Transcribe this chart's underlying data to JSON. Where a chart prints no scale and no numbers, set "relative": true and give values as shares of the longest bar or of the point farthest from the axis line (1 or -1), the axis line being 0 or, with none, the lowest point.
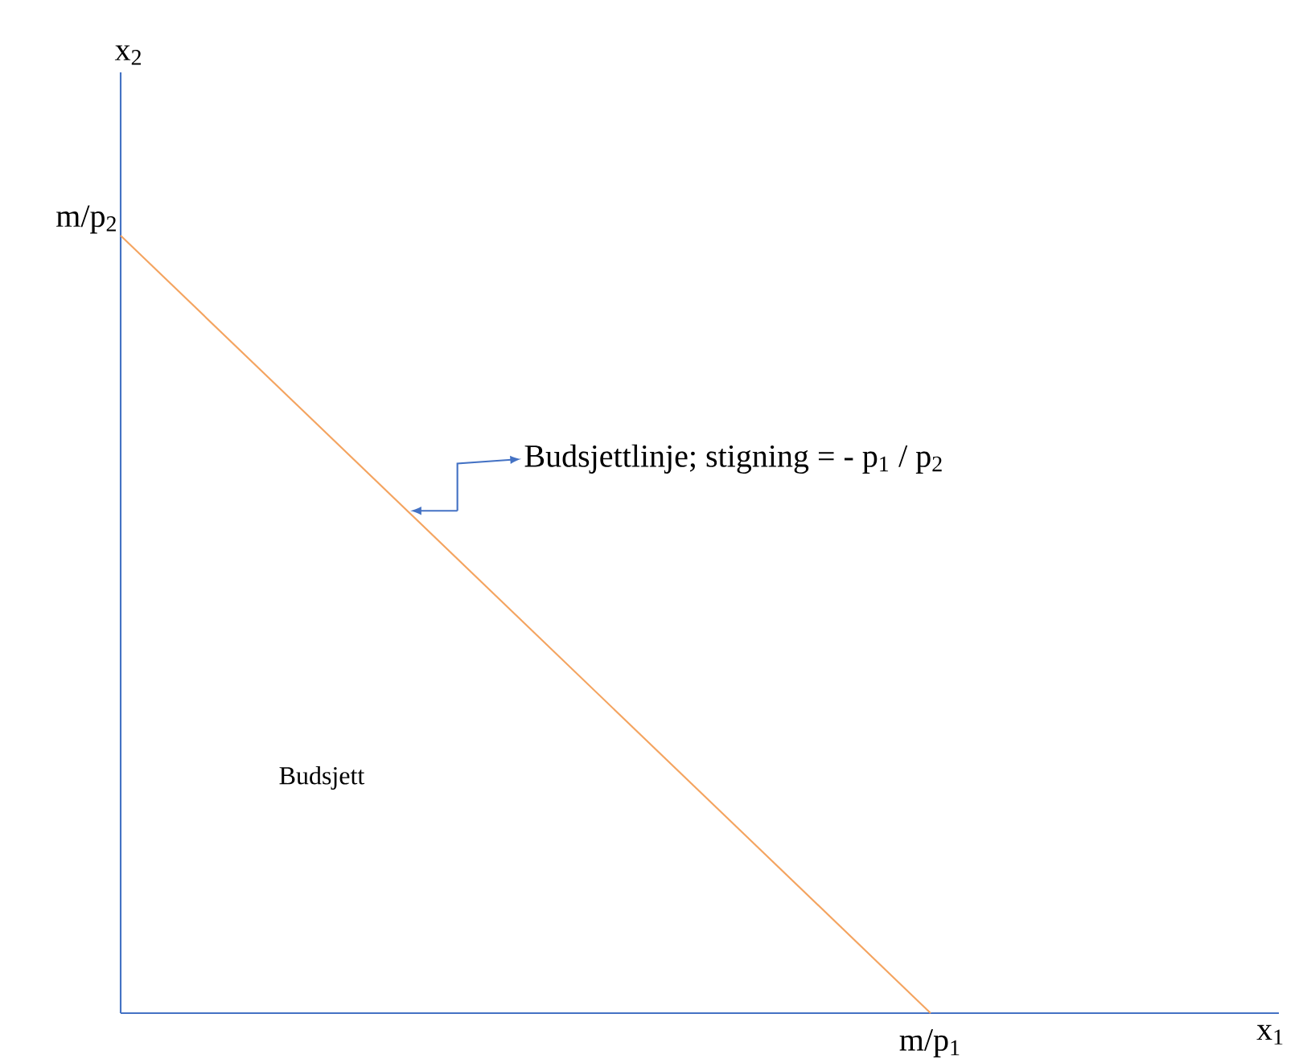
{
  "chart_data": {
    "type": "line",
    "relative": true,
    "categories": [
      null,
      null
    ],
    "series": [
      {
        "color": "#f4a460",
        "values": [
          1,
          0
        ]
      }
    ],
    "annotations": [
      "m/p$_{2}$",
      "m/p$_{1}$",
      "Budsjettlinje; stigning = - p$_{1}$ / p$_{2}$",
      "Budsjett",
      "x$_{1}$",
      "x$_{2}$"
    ],
    "marker": "none",
    "line_style": "solid"
  }
}
